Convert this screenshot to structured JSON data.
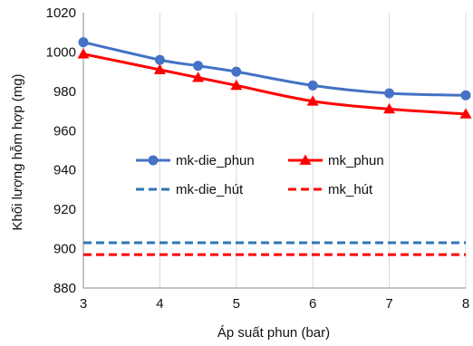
{
  "chart_data": {
    "type": "line",
    "xlabel": "Áp suất phun (bar)",
    "ylabel": "Khối lượng hỗm hợp (mg)",
    "xlim": [
      3,
      8
    ],
    "ylim": [
      880,
      1020
    ],
    "xticks": [
      3,
      4,
      5,
      6,
      7,
      8
    ],
    "yticks": [
      880,
      900,
      920,
      940,
      960,
      980,
      1000,
      1020
    ],
    "grid": "vertical",
    "legend_placement": "center-left",
    "series": [
      {
        "name": "mk-die_phun",
        "color": "#4472C4",
        "style": "solid",
        "marker": "circle",
        "x": [
          3,
          4,
          4.5,
          5,
          6,
          7,
          8
        ],
        "y": [
          1005,
          996,
          993,
          990,
          983,
          979,
          978
        ]
      },
      {
        "name": "mk_phun",
        "color": "#FF0000",
        "style": "solid",
        "marker": "triangle",
        "x": [
          3,
          4,
          4.5,
          5,
          6,
          7,
          8
        ],
        "y": [
          999,
          991,
          987,
          983,
          975,
          971,
          968.5
        ]
      },
      {
        "name": "mk-die_hút",
        "color": "#2E75B6",
        "style": "dashed",
        "marker": "none",
        "x": [
          3,
          8
        ],
        "y": [
          903,
          903
        ]
      },
      {
        "name": "mk_hút",
        "color": "#FF0000",
        "style": "dashed",
        "marker": "none",
        "x": [
          3,
          8
        ],
        "y": [
          897,
          897
        ]
      }
    ]
  }
}
